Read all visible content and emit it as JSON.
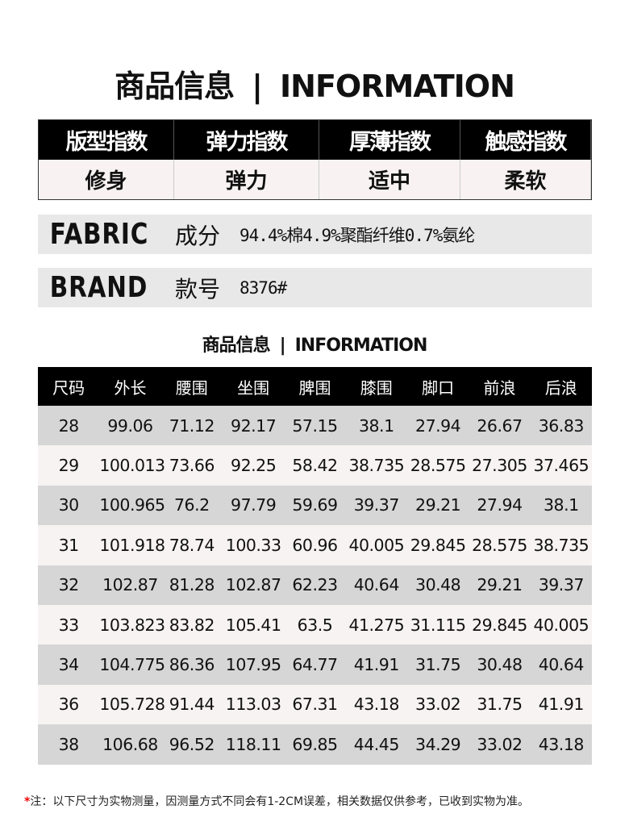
{
  "header": {
    "title_cn": "商品信息",
    "separator": "|",
    "title_en": "INFORMATION"
  },
  "indices": [
    {
      "label": "版型指数",
      "value": "修身"
    },
    {
      "label": "弹力指数",
      "value": "弹力"
    },
    {
      "label": "厚薄指数",
      "value": "适中"
    },
    {
      "label": "触感指数",
      "value": "柔软"
    }
  ],
  "fabric": {
    "key": "FABRIC",
    "label": "成分",
    "value": "94.4%棉4.9%聚酯纤维0.7%氨纶"
  },
  "brand": {
    "key": "BRAND",
    "label": "款号",
    "value": "8376#"
  },
  "size_table": {
    "title_cn": "商品信息",
    "separator": "|",
    "title_en": "INFORMATION",
    "columns": [
      "尺码",
      "外长",
      "腰围",
      "坐围",
      "脾围",
      "膝围",
      "脚口",
      "前浪",
      "后浪"
    ],
    "rows": [
      [
        "28",
        "99.06",
        "71.12",
        "92.17",
        "57.15",
        "38.1",
        "27.94",
        "26.67",
        "36.83"
      ],
      [
        "29",
        "100.013",
        "73.66",
        "92.25",
        "58.42",
        "38.735",
        "28.575",
        "27.305",
        "37.465"
      ],
      [
        "30",
        "100.965",
        "76.2",
        "97.79",
        "59.69",
        "39.37",
        "29.21",
        "27.94",
        "38.1"
      ],
      [
        "31",
        "101.918",
        "78.74",
        "100.33",
        "60.96",
        "40.005",
        "29.845",
        "28.575",
        "38.735"
      ],
      [
        "32",
        "102.87",
        "81.28",
        "102.87",
        "62.23",
        "40.64",
        "30.48",
        "29.21",
        "39.37"
      ],
      [
        "33",
        "103.823",
        "83.82",
        "105.41",
        "63.5",
        "41.275",
        "31.115",
        "29.845",
        "40.005"
      ],
      [
        "34",
        "104.775",
        "86.36",
        "107.95",
        "64.77",
        "41.91",
        "31.75",
        "30.48",
        "40.64"
      ],
      [
        "36",
        "105.728",
        "91.44",
        "113.03",
        "67.31",
        "43.18",
        "33.02",
        "31.75",
        "41.91"
      ],
      [
        "38",
        "106.68",
        "96.52",
        "118.11",
        "69.85",
        "44.45",
        "34.29",
        "33.02",
        "43.18"
      ]
    ]
  },
  "note": {
    "marker": "*",
    "text": "注：以下尺寸为实物测量，因测量方式不同会有1-2CM误差，相关数据仅供参考，已收到实物为准。"
  },
  "colors": {
    "header_bg": "#000000",
    "row_dark": "#d6d6d6",
    "row_light": "#f7f3f3",
    "note_marker": "#e00000"
  }
}
